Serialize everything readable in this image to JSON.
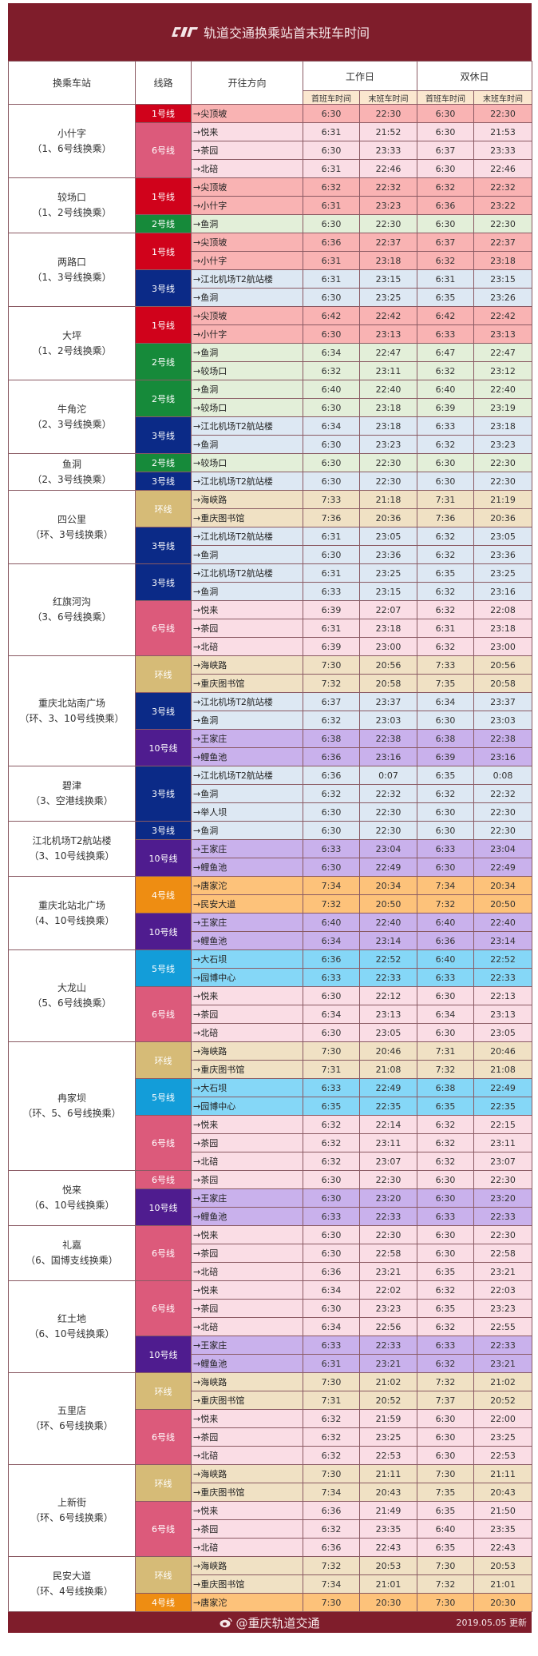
{
  "header": {
    "title": "轨道交通换乘站首末班车时间",
    "logo": "cqrt-logo-icon"
  },
  "columns": {
    "station": "换乘车站",
    "line": "线路",
    "direction": "开往方向",
    "weekday": "工作日",
    "weekend": "双休日",
    "first": "首班车时间",
    "last": "末班车时间"
  },
  "colors": {
    "title_bg": "#7f1d2b",
    "line1": {
      "badge": "#d0021b",
      "row": "#f9b3b3"
    },
    "line2": {
      "badge": "#168a3a",
      "row": "#e3efd9"
    },
    "line3": {
      "badge": "#0b2a87",
      "row": "#dde8f3"
    },
    "loop": {
      "badge": "#d6bb77",
      "row": "#f0e1c4"
    },
    "line4": {
      "badge": "#ee8d12",
      "row": "#fdc27a"
    },
    "line5": {
      "badge": "#139dd9",
      "row": "#85d7f7"
    },
    "line6": {
      "badge": "#dc5a7b",
      "row": "#fadde5"
    },
    "line10": {
      "badge": "#4f1c8f",
      "row": "#c9b1ec"
    }
  },
  "stations": [
    {
      "name": "小什字",
      "transfer": "（1、6号线换乘）",
      "groups": [
        {
          "line": "1号线",
          "key": "line1",
          "rows": [
            [
              "→尖顶坡",
              "6:30",
              "22:30",
              "6:30",
              "22:30"
            ]
          ]
        },
        {
          "line": "6号线",
          "key": "line6",
          "rows": [
            [
              "→悦来",
              "6:31",
              "21:52",
              "6:30",
              "21:53"
            ],
            [
              "→茶园",
              "6:30",
              "23:33",
              "6:37",
              "23:33"
            ],
            [
              "→北碚",
              "6:31",
              "22:46",
              "6:30",
              "22:46"
            ]
          ]
        }
      ]
    },
    {
      "name": "较场口",
      "transfer": "（1、2号线换乘）",
      "groups": [
        {
          "line": "1号线",
          "key": "line1",
          "rows": [
            [
              "→尖顶坡",
              "6:32",
              "22:32",
              "6:32",
              "22:32"
            ],
            [
              "→小什字",
              "6:31",
              "23:23",
              "6:36",
              "23:22"
            ]
          ]
        },
        {
          "line": "2号线",
          "key": "line2",
          "rows": [
            [
              "→鱼洞",
              "6:30",
              "22:30",
              "6:30",
              "22:30"
            ]
          ]
        }
      ]
    },
    {
      "name": "两路口",
      "transfer": "（1、3号线换乘）",
      "groups": [
        {
          "line": "1号线",
          "key": "line1",
          "rows": [
            [
              "→尖顶坡",
              "6:36",
              "22:37",
              "6:37",
              "22:37"
            ],
            [
              "→小什字",
              "6:31",
              "23:18",
              "6:32",
              "23:18"
            ]
          ]
        },
        {
          "line": "3号线",
          "key": "line3",
          "rows": [
            [
              "→江北机场T2航站楼",
              "6:31",
              "23:15",
              "6:31",
              "23:15"
            ],
            [
              "→鱼洞",
              "6:30",
              "23:25",
              "6:35",
              "23:26"
            ]
          ]
        }
      ]
    },
    {
      "name": "大坪",
      "transfer": "（1、2号线换乘）",
      "groups": [
        {
          "line": "1号线",
          "key": "line1",
          "rows": [
            [
              "→尖顶坡",
              "6:42",
              "22:42",
              "6:42",
              "22:42"
            ],
            [
              "→小什字",
              "6:30",
              "23:13",
              "6:33",
              "23:13"
            ]
          ]
        },
        {
          "line": "2号线",
          "key": "line2",
          "rows": [
            [
              "→鱼洞",
              "6:34",
              "22:47",
              "6:47",
              "22:47"
            ],
            [
              "→较场口",
              "6:32",
              "23:11",
              "6:32",
              "23:12"
            ]
          ]
        }
      ]
    },
    {
      "name": "牛角沱",
      "transfer": "（2、3号线换乘）",
      "groups": [
        {
          "line": "2号线",
          "key": "line2",
          "rows": [
            [
              "→鱼洞",
              "6:40",
              "22:40",
              "6:40",
              "22:40"
            ],
            [
              "→较场口",
              "6:30",
              "23:18",
              "6:39",
              "23:19"
            ]
          ]
        },
        {
          "line": "3号线",
          "key": "line3",
          "rows": [
            [
              "→江北机场T2航站楼",
              "6:34",
              "23:18",
              "6:33",
              "23:18"
            ],
            [
              "→鱼洞",
              "6:30",
              "23:23",
              "6:32",
              "23:23"
            ]
          ]
        }
      ]
    },
    {
      "name": "鱼洞",
      "transfer": "（2、3号线换乘）",
      "groups": [
        {
          "line": "2号线",
          "key": "line2",
          "rows": [
            [
              "→较场口",
              "6:30",
              "22:30",
              "6:30",
              "22:30"
            ]
          ]
        },
        {
          "line": "3号线",
          "key": "line3",
          "rows": [
            [
              "→江北机场T2航站楼",
              "6:30",
              "22:30",
              "6:30",
              "22:30"
            ]
          ]
        }
      ]
    },
    {
      "name": "四公里",
      "transfer": "（环、3号线换乘）",
      "groups": [
        {
          "line": "环线",
          "key": "loop",
          "rows": [
            [
              "→海峡路",
              "7:33",
              "21:18",
              "7:31",
              "21:19"
            ],
            [
              "→重庆图书馆",
              "7:36",
              "20:36",
              "7:36",
              "20:36"
            ]
          ]
        },
        {
          "line": "3号线",
          "key": "line3",
          "rows": [
            [
              "→江北机场T2航站楼",
              "6:31",
              "23:05",
              "6:32",
              "23:05"
            ],
            [
              "→鱼洞",
              "6:30",
              "23:36",
              "6:32",
              "23:36"
            ]
          ]
        }
      ]
    },
    {
      "name": "红旗河沟",
      "transfer": "（3、6号线换乘）",
      "groups": [
        {
          "line": "3号线",
          "key": "line3",
          "rows": [
            [
              "→江北机场T2航站楼",
              "6:31",
              "23:25",
              "6:35",
              "23:25"
            ],
            [
              "→鱼洞",
              "6:33",
              "23:15",
              "6:32",
              "23:16"
            ]
          ]
        },
        {
          "line": "6号线",
          "key": "line6",
          "rows": [
            [
              "→悦来",
              "6:39",
              "22:07",
              "6:32",
              "22:08"
            ],
            [
              "→茶园",
              "6:31",
              "23:18",
              "6:31",
              "23:18"
            ],
            [
              "→北碚",
              "6:39",
              "23:00",
              "6:32",
              "23:00"
            ]
          ]
        }
      ]
    },
    {
      "name": "重庆北站南广场",
      "transfer": "（环、3、10号线换乘）",
      "groups": [
        {
          "line": "环线",
          "key": "loop",
          "rows": [
            [
              "→海峡路",
              "7:30",
              "20:56",
              "7:33",
              "20:56"
            ],
            [
              "→重庆图书馆",
              "7:32",
              "20:58",
              "7:35",
              "20:58"
            ]
          ]
        },
        {
          "line": "3号线",
          "key": "line3",
          "rows": [
            [
              "→江北机场T2航站楼",
              "6:37",
              "23:37",
              "6:34",
              "23:37"
            ],
            [
              "→鱼洞",
              "6:32",
              "23:03",
              "6:30",
              "23:03"
            ]
          ]
        },
        {
          "line": "10号线",
          "key": "line10",
          "rows": [
            [
              "→王家庄",
              "6:38",
              "22:38",
              "6:38",
              "22:38"
            ],
            [
              "→鲤鱼池",
              "6:36",
              "23:16",
              "6:39",
              "23:16"
            ]
          ]
        }
      ]
    },
    {
      "name": "碧津",
      "transfer": "（3、空港线换乘）",
      "groups": [
        {
          "line": "3号线",
          "key": "line3",
          "rows": [
            [
              "→江北机场T2航站楼",
              "6:36",
              "0:07",
              "6:35",
              "0:08"
            ],
            [
              "→鱼洞",
              "6:32",
              "22:32",
              "6:32",
              "22:32"
            ],
            [
              "→举人坝",
              "6:30",
              "22:30",
              "6:30",
              "22:30"
            ]
          ]
        }
      ]
    },
    {
      "name": "江北机场T2航站楼",
      "transfer": "（3、10号线换乘）",
      "groups": [
        {
          "line": "3号线",
          "key": "line3",
          "rows": [
            [
              "→鱼洞",
              "6:30",
              "22:30",
              "6:30",
              "22:30"
            ]
          ]
        },
        {
          "line": "10号线",
          "key": "line10",
          "rows": [
            [
              "→王家庄",
              "6:33",
              "23:04",
              "6:33",
              "23:04"
            ],
            [
              "→鲤鱼池",
              "6:30",
              "22:49",
              "6:30",
              "22:49"
            ]
          ]
        }
      ]
    },
    {
      "name": "重庆北站北广场",
      "transfer": "（4、10号线换乘）",
      "groups": [
        {
          "line": "4号线",
          "key": "line4",
          "rows": [
            [
              "→唐家沱",
              "7:34",
              "20:34",
              "7:34",
              "20:34"
            ],
            [
              "→民安大道",
              "7:32",
              "20:50",
              "7:32",
              "20:50"
            ]
          ]
        },
        {
          "line": "10号线",
          "key": "line10",
          "rows": [
            [
              "→王家庄",
              "6:40",
              "22:40",
              "6:40",
              "22:40"
            ],
            [
              "→鲤鱼池",
              "6:34",
              "23:14",
              "6:36",
              "23:14"
            ]
          ]
        }
      ]
    },
    {
      "name": "大龙山",
      "transfer": "（5、6号线换乘）",
      "groups": [
        {
          "line": "5号线",
          "key": "line5",
          "rows": [
            [
              "→大石坝",
              "6:36",
              "22:52",
              "6:40",
              "22:52"
            ],
            [
              "→园博中心",
              "6:33",
              "22:33",
              "6:33",
              "22:33"
            ]
          ]
        },
        {
          "line": "6号线",
          "key": "line6",
          "rows": [
            [
              "→悦来",
              "6:30",
              "22:12",
              "6:30",
              "22:13"
            ],
            [
              "→茶园",
              "6:34",
              "23:13",
              "6:34",
              "23:13"
            ],
            [
              "→北碚",
              "6:30",
              "23:05",
              "6:30",
              "23:05"
            ]
          ]
        }
      ]
    },
    {
      "name": "冉家坝",
      "transfer": "（环、5、6号线换乘）",
      "groups": [
        {
          "line": "环线",
          "key": "loop",
          "rows": [
            [
              "→海峡路",
              "7:30",
              "20:46",
              "7:31",
              "20:46"
            ],
            [
              "→重庆图书馆",
              "7:31",
              "21:08",
              "7:32",
              "21:08"
            ]
          ]
        },
        {
          "line": "5号线",
          "key": "line5",
          "rows": [
            [
              "→大石坝",
              "6:33",
              "22:49",
              "6:38",
              "22:49"
            ],
            [
              "→园博中心",
              "6:35",
              "22:35",
              "6:35",
              "22:35"
            ]
          ]
        },
        {
          "line": "6号线",
          "key": "line6",
          "rows": [
            [
              "→悦来",
              "6:32",
              "22:14",
              "6:32",
              "22:15"
            ],
            [
              "→茶园",
              "6:32",
              "23:11",
              "6:32",
              "23:11"
            ],
            [
              "→北碚",
              "6:32",
              "23:07",
              "6:32",
              "23:07"
            ]
          ]
        }
      ]
    },
    {
      "name": "悦来",
      "transfer": "（6、10号线换乘）",
      "groups": [
        {
          "line": "6号线",
          "key": "line6",
          "rows": [
            [
              "→茶园",
              "6:30",
              "22:30",
              "6:30",
              "22:30"
            ]
          ]
        },
        {
          "line": "10号线",
          "key": "line10",
          "rows": [
            [
              "→王家庄",
              "6:30",
              "23:20",
              "6:30",
              "23:20"
            ],
            [
              "→鲤鱼池",
              "6:33",
              "22:33",
              "6:33",
              "22:33"
            ]
          ]
        }
      ]
    },
    {
      "name": "礼嘉",
      "transfer": "（6、国博支线换乘）",
      "groups": [
        {
          "line": "6号线",
          "key": "line6",
          "rows": [
            [
              "→悦来",
              "6:30",
              "22:30",
              "6:30",
              "22:30"
            ],
            [
              "→茶园",
              "6:30",
              "22:58",
              "6:30",
              "22:58"
            ],
            [
              "→北碚",
              "6:36",
              "23:21",
              "6:35",
              "23:21"
            ]
          ]
        }
      ]
    },
    {
      "name": "红土地",
      "transfer": "（6、10号线换乘）",
      "groups": [
        {
          "line": "6号线",
          "key": "line6",
          "rows": [
            [
              "→悦来",
              "6:34",
              "22:02",
              "6:32",
              "22:03"
            ],
            [
              "→茶园",
              "6:30",
              "23:23",
              "6:35",
              "23:23"
            ],
            [
              "→北碚",
              "6:34",
              "22:56",
              "6:32",
              "22:55"
            ]
          ]
        },
        {
          "line": "10号线",
          "key": "line10",
          "rows": [
            [
              "→王家庄",
              "6:33",
              "22:33",
              "6:33",
              "22:33"
            ],
            [
              "→鲤鱼池",
              "6:31",
              "23:21",
              "6:32",
              "23:21"
            ]
          ]
        }
      ]
    },
    {
      "name": "五里店",
      "transfer": "（环、6号线换乘）",
      "groups": [
        {
          "line": "环线",
          "key": "loop",
          "rows": [
            [
              "→海峡路",
              "7:30",
              "21:02",
              "7:32",
              "21:02"
            ],
            [
              "→重庆图书馆",
              "7:31",
              "20:52",
              "7:37",
              "20:52"
            ]
          ]
        },
        {
          "line": "6号线",
          "key": "line6",
          "rows": [
            [
              "→悦来",
              "6:32",
              "21:59",
              "6:30",
              "22:00"
            ],
            [
              "→茶园",
              "6:32",
              "23:25",
              "6:30",
              "23:25"
            ],
            [
              "→北碚",
              "6:32",
              "22:53",
              "6:30",
              "22:53"
            ]
          ]
        }
      ]
    },
    {
      "name": "上新街",
      "transfer": "（环、6号线换乘）",
      "groups": [
        {
          "line": "环线",
          "key": "loop",
          "rows": [
            [
              "→海峡路",
              "7:30",
              "21:11",
              "7:30",
              "21:11"
            ],
            [
              "→重庆图书馆",
              "7:34",
              "20:43",
              "7:35",
              "20:43"
            ]
          ]
        },
        {
          "line": "6号线",
          "key": "line6",
          "rows": [
            [
              "→悦来",
              "6:36",
              "21:49",
              "6:35",
              "21:50"
            ],
            [
              "→茶园",
              "6:32",
              "23:35",
              "6:40",
              "23:35"
            ],
            [
              "→北碚",
              "6:36",
              "22:43",
              "6:35",
              "22:43"
            ]
          ]
        }
      ]
    },
    {
      "name": "民安大道",
      "transfer": "（环、4号线换乘）",
      "groups": [
        {
          "line": "环线",
          "key": "loop",
          "rows": [
            [
              "→海峡路",
              "7:32",
              "20:53",
              "7:30",
              "20:53"
            ],
            [
              "→重庆图书馆",
              "7:34",
              "21:01",
              "7:32",
              "21:01"
            ]
          ]
        },
        {
          "line": "4号线",
          "key": "line4",
          "rows": [
            [
              "→唐家沱",
              "7:30",
              "20:30",
              "7:30",
              "20:30"
            ]
          ]
        }
      ]
    }
  ],
  "footer": {
    "account": "@重庆轨道交通",
    "icon": "weibo-icon",
    "updated": "2019.05.05 更新"
  }
}
